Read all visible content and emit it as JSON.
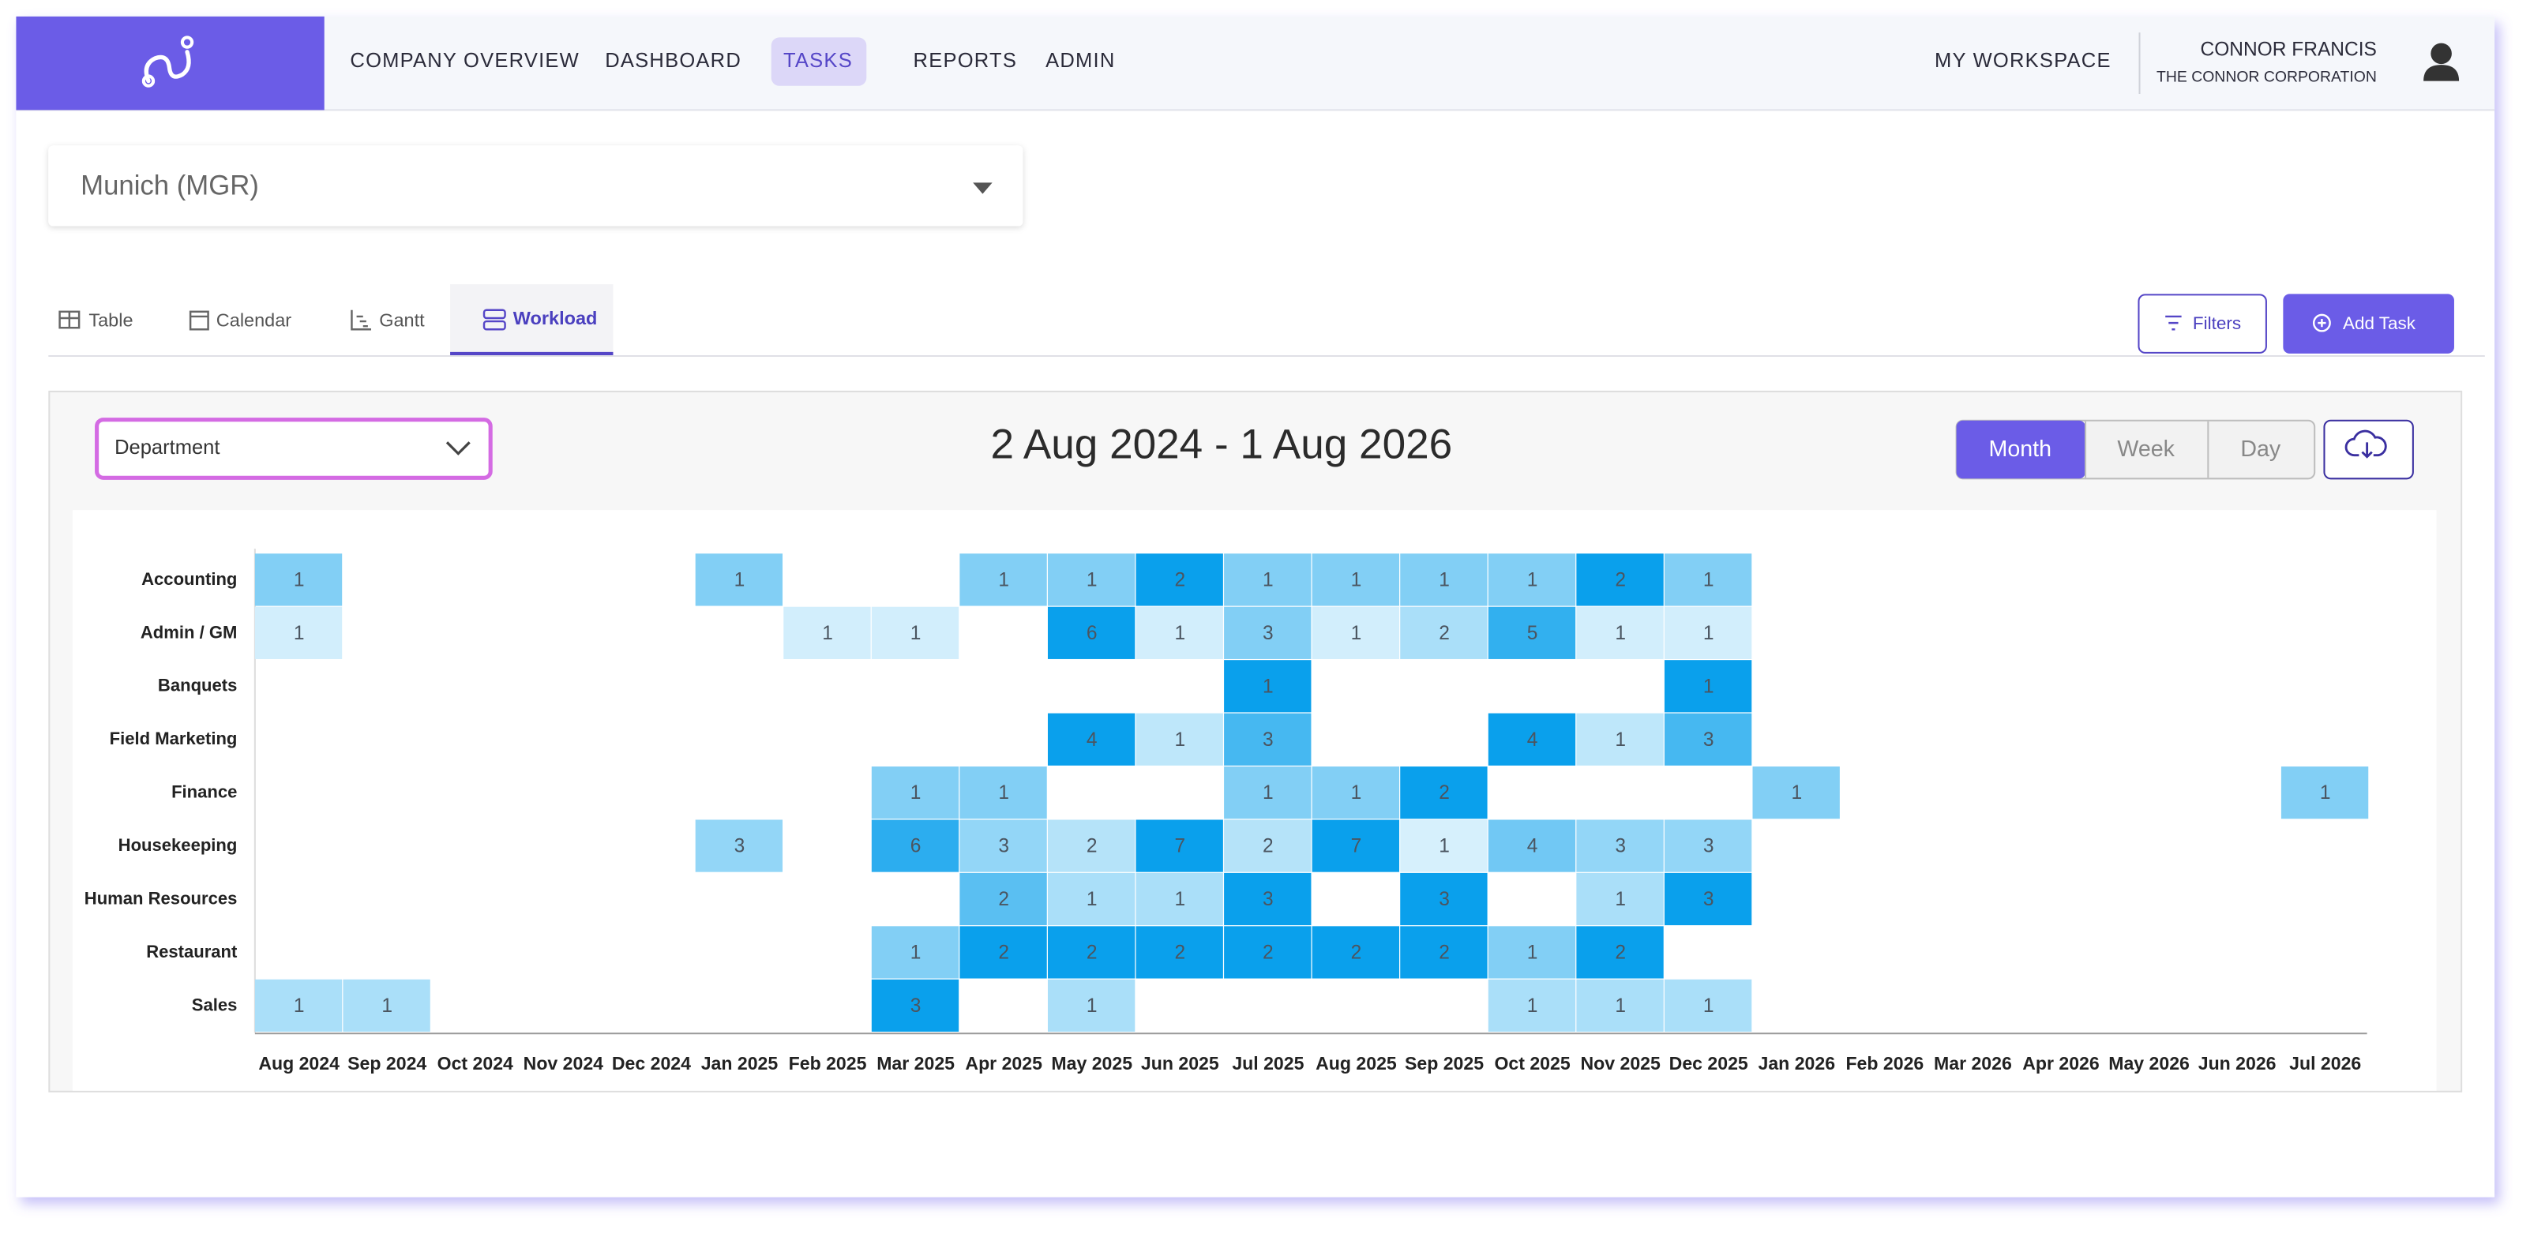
{
  "nav": {
    "items": [
      "COMPANY OVERVIEW",
      "DASHBOARD",
      "TASKS",
      "REPORTS",
      "ADMIN"
    ],
    "workspace": "MY WORKSPACE",
    "user_name": "CONNOR FRANCIS",
    "user_company": "THE CONNOR CORPORATION"
  },
  "location": "Munich (MGR)",
  "tabs": [
    "Table",
    "Calendar",
    "Gantt",
    "Workload"
  ],
  "buttons": {
    "filters": "Filters",
    "add_task": "Add Task"
  },
  "panel": {
    "group_by": "Department",
    "date_range": "2 Aug 2024 - 1 Aug 2026",
    "view_modes": [
      "Month",
      "Week",
      "Day"
    ]
  },
  "workload": {
    "rows": [
      "Accounting",
      "Admin / GM",
      "Banquets",
      "Field Marketing",
      "Finance",
      "Housekeeping",
      "Human Resources",
      "Restaurant",
      "Sales"
    ],
    "months": [
      "Aug 2024",
      "Sep 2024",
      "Oct 2024",
      "Nov 2024",
      "Dec 2024",
      "Jan 2025",
      "Feb 2025",
      "Mar 2025",
      "Apr 2025",
      "May 2025",
      "Jun 2025",
      "Jul 2025",
      "Aug 2025",
      "Sep 2025",
      "Oct 2025",
      "Nov 2025",
      "Dec 2025",
      "Jan 2026",
      "Feb 2026",
      "Mar 2026",
      "Apr 2026",
      "May 2026",
      "Jun 2026",
      "Jul 2026"
    ],
    "values": [
      [
        1,
        null,
        null,
        null,
        null,
        1,
        null,
        null,
        1,
        1,
        2,
        1,
        1,
        1,
        1,
        2,
        1,
        null,
        null,
        null,
        null,
        null,
        null,
        null
      ],
      [
        1,
        null,
        null,
        null,
        null,
        null,
        1,
        1,
        null,
        6,
        1,
        3,
        1,
        2,
        5,
        1,
        1,
        null,
        null,
        null,
        null,
        null,
        null,
        null
      ],
      [
        null,
        null,
        null,
        null,
        null,
        null,
        null,
        null,
        null,
        null,
        null,
        1,
        null,
        null,
        null,
        null,
        1,
        null,
        null,
        null,
        null,
        null,
        null,
        null
      ],
      [
        null,
        null,
        null,
        null,
        null,
        null,
        null,
        null,
        null,
        4,
        1,
        3,
        null,
        null,
        4,
        1,
        3,
        null,
        null,
        null,
        null,
        null,
        null,
        null
      ],
      [
        null,
        null,
        null,
        null,
        null,
        null,
        null,
        1,
        1,
        null,
        null,
        1,
        1,
        2,
        null,
        null,
        null,
        1,
        null,
        null,
        null,
        null,
        null,
        1
      ],
      [
        null,
        null,
        null,
        null,
        null,
        3,
        null,
        6,
        3,
        2,
        7,
        2,
        7,
        1,
        4,
        3,
        3,
        null,
        null,
        null,
        null,
        null,
        null,
        null
      ],
      [
        null,
        null,
        null,
        null,
        null,
        null,
        null,
        null,
        2,
        1,
        1,
        3,
        null,
        3,
        null,
        1,
        3,
        null,
        null,
        null,
        null,
        null,
        null,
        null
      ],
      [
        null,
        null,
        null,
        null,
        null,
        null,
        null,
        1,
        2,
        2,
        2,
        2,
        2,
        2,
        1,
        2,
        null,
        null,
        null,
        null,
        null,
        null,
        null,
        null
      ],
      [
        1,
        1,
        null,
        null,
        null,
        null,
        null,
        3,
        null,
        1,
        null,
        null,
        null,
        null,
        1,
        1,
        1,
        null,
        null,
        null,
        null,
        null,
        null,
        null
      ]
    ]
  }
}
